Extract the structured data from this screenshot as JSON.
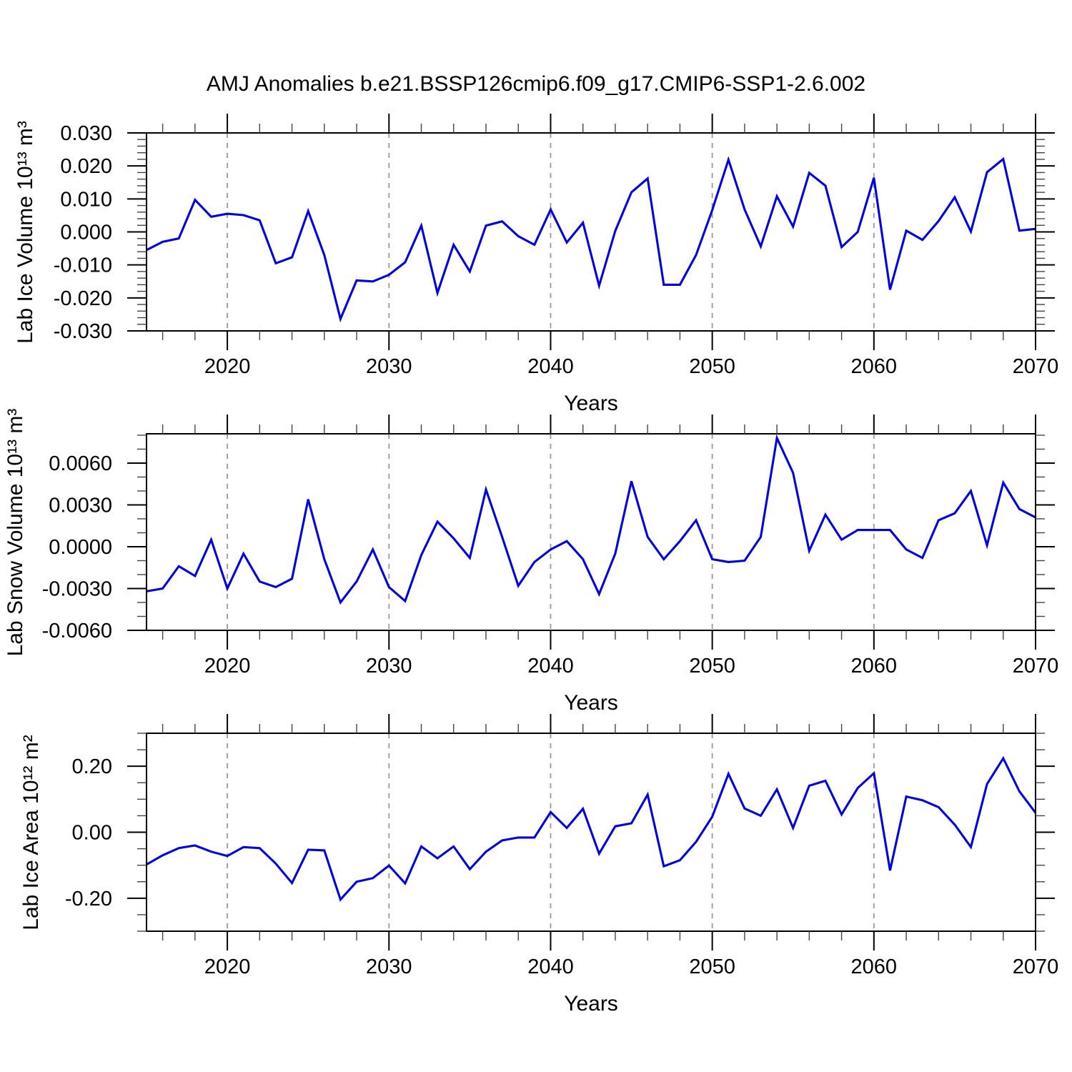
{
  "title": "AMJ Anomalies b.e21.BSSP126cmip6.f09_g17.CMIP6-SSP1-2.6.002",
  "colors": {
    "line": "#0000e0",
    "grid": "#999999",
    "axis": "#000000",
    "minor_tick": "#444444",
    "background": "#ffffff"
  },
  "chart_data": [
    {
      "type": "line",
      "title": "AMJ Anomalies b.e21.BSSP126cmip6.f09_g17.CMIP6-SSP1-2.6.002",
      "ylabel": "Lab Ice Volume 10¹³ m³",
      "xlabel": "Years",
      "legend_position": "none",
      "grid": "vertical-dashed",
      "grid_years": [
        2020,
        2030,
        2040,
        2050,
        2060
      ],
      "xlim": [
        2015,
        2070
      ],
      "ylim": [
        -0.03,
        0.03
      ],
      "xticks": {
        "values": [
          2020,
          2030,
          2040,
          2050,
          2060,
          2070
        ],
        "labels": [
          "2020",
          "2030",
          "2040",
          "2050",
          "2060",
          "2070"
        ]
      },
      "yticks": {
        "values": [
          0.03,
          0.02,
          0.01,
          0.0,
          -0.01,
          -0.02,
          -0.03
        ],
        "labels": [
          "0.030",
          "0.020",
          "0.010",
          "0.000",
          "-0.010",
          "-0.020",
          "-0.030"
        ]
      },
      "xminor_step": 2,
      "yminor_step": 0.002,
      "x": [
        2015,
        2016,
        2017,
        2018,
        2019,
        2020,
        2021,
        2022,
        2023,
        2024,
        2025,
        2026,
        2027,
        2028,
        2029,
        2030,
        2031,
        2032,
        2033,
        2034,
        2035,
        2036,
        2037,
        2038,
        2039,
        2040,
        2041,
        2042,
        2043,
        2044,
        2045,
        2046,
        2047,
        2048,
        2049,
        2050,
        2051,
        2052,
        2053,
        2054,
        2055,
        2056,
        2057,
        2058,
        2059,
        2060,
        2061,
        2062,
        2063,
        2064,
        2065,
        2066,
        2067,
        2068,
        2069,
        2070
      ],
      "values": [
        -0.0055,
        -0.003,
        -0.002,
        0.0097,
        0.0046,
        0.0055,
        0.0051,
        0.0035,
        -0.0095,
        -0.0077,
        0.0063,
        -0.007,
        -0.0264,
        -0.0147,
        -0.015,
        -0.013,
        -0.0092,
        0.0019,
        -0.0185,
        -0.0039,
        -0.012,
        0.0019,
        0.0032,
        -0.0013,
        -0.0039,
        0.0068,
        -0.0032,
        0.0028,
        -0.0163,
        0.0003,
        0.012,
        0.0162,
        -0.016,
        -0.016,
        -0.007,
        0.0066,
        0.0219,
        0.0068,
        -0.0044,
        0.0108,
        0.0016,
        0.0179,
        0.014,
        -0.0046,
        0.0,
        0.0164,
        -0.0175,
        0.0004,
        -0.0024,
        0.0033,
        0.0105,
        0.0001,
        0.0181,
        0.0221,
        0.0004,
        0.0009
      ]
    },
    {
      "type": "line",
      "title": "",
      "ylabel": "Lab Snow Volume 10¹³ m³",
      "xlabel": "Years",
      "legend_position": "none",
      "grid": "vertical-dashed",
      "grid_years": [
        2020,
        2030,
        2040,
        2050,
        2060
      ],
      "xlim": [
        2015,
        2070
      ],
      "ylim": [
        -0.006,
        0.0081
      ],
      "xticks": {
        "values": [
          2020,
          2030,
          2040,
          2050,
          2060,
          2070
        ],
        "labels": [
          "2020",
          "2030",
          "2040",
          "2050",
          "2060",
          "2070"
        ]
      },
      "yticks": {
        "values": [
          0.006,
          0.003,
          0.0,
          -0.003,
          -0.006
        ],
        "labels": [
          "0.0060",
          "0.0030",
          "0.0000",
          "-0.0030",
          "-0.0060"
        ]
      },
      "xminor_step": 2,
      "yminor_step": 0.001,
      "x": [
        2015,
        2016,
        2017,
        2018,
        2019,
        2020,
        2021,
        2022,
        2023,
        2024,
        2025,
        2026,
        2027,
        2028,
        2029,
        2030,
        2031,
        2032,
        2033,
        2034,
        2035,
        2036,
        2037,
        2038,
        2039,
        2040,
        2041,
        2042,
        2043,
        2044,
        2045,
        2046,
        2047,
        2048,
        2049,
        2050,
        2051,
        2052,
        2053,
        2054,
        2055,
        2056,
        2057,
        2058,
        2059,
        2060,
        2061,
        2062,
        2063,
        2064,
        2065,
        2066,
        2067,
        2068,
        2069,
        2070
      ],
      "values": [
        -0.0032,
        -0.003,
        -0.0014,
        -0.0021,
        0.0005,
        -0.003,
        -0.0005,
        -0.0025,
        -0.0029,
        -0.0023,
        0.0034,
        -0.0009,
        -0.004,
        -0.0025,
        -0.0002,
        -0.0029,
        -0.0039,
        -0.0006,
        0.0018,
        0.0006,
        -0.0008,
        0.0041,
        0.0007,
        -0.0028,
        -0.0011,
        -0.0002,
        0.0004,
        -0.0009,
        -0.0034,
        -0.0005,
        0.0047,
        0.0007,
        -0.0009,
        0.0004,
        0.0019,
        -0.0009,
        -0.0011,
        -0.001,
        0.0007,
        0.0078,
        0.0053,
        -0.0003,
        0.0023,
        0.0005,
        0.0012,
        0.0012,
        0.0012,
        -0.0002,
        -0.0008,
        0.0019,
        0.0024,
        0.004,
        0.0001,
        0.0046,
        0.0027,
        0.0021
      ]
    },
    {
      "type": "line",
      "title": "",
      "ylabel": "Lab Ice Area 10¹² m²",
      "xlabel": "Years",
      "legend_position": "none",
      "grid": "vertical-dashed",
      "grid_years": [
        2020,
        2030,
        2040,
        2050,
        2060
      ],
      "xlim": [
        2015,
        2070
      ],
      "ylim": [
        -0.3,
        0.3
      ],
      "xticks": {
        "values": [
          2020,
          2030,
          2040,
          2050,
          2060,
          2070
        ],
        "labels": [
          "2020",
          "2030",
          "2040",
          "2050",
          "2060",
          "2070"
        ]
      },
      "yticks": {
        "values": [
          0.2,
          0.0,
          -0.2
        ],
        "labels": [
          "0.20",
          "0.00",
          "-0.20"
        ]
      },
      "xminor_step": 2,
      "yminor_step": 0.05,
      "x": [
        2015,
        2016,
        2017,
        2018,
        2019,
        2020,
        2021,
        2022,
        2023,
        2024,
        2025,
        2026,
        2027,
        2028,
        2029,
        2030,
        2031,
        2032,
        2033,
        2034,
        2035,
        2036,
        2037,
        2038,
        2039,
        2040,
        2041,
        2042,
        2043,
        2044,
        2045,
        2046,
        2047,
        2048,
        2049,
        2050,
        2051,
        2052,
        2053,
        2054,
        2055,
        2056,
        2057,
        2058,
        2059,
        2060,
        2061,
        2062,
        2063,
        2064,
        2065,
        2066,
        2067,
        2068,
        2069,
        2070
      ],
      "values": [
        -0.098,
        -0.07,
        -0.048,
        -0.04,
        -0.059,
        -0.072,
        -0.045,
        -0.048,
        -0.095,
        -0.154,
        -0.053,
        -0.055,
        -0.204,
        -0.15,
        -0.139,
        -0.101,
        -0.155,
        -0.043,
        -0.079,
        -0.043,
        -0.112,
        -0.059,
        -0.025,
        -0.016,
        -0.016,
        0.061,
        0.013,
        0.071,
        -0.065,
        0.018,
        0.027,
        0.114,
        -0.103,
        -0.085,
        -0.029,
        0.047,
        0.177,
        0.072,
        0.05,
        0.13,
        0.013,
        0.141,
        0.156,
        0.054,
        0.134,
        0.179,
        -0.116,
        0.108,
        0.097,
        0.076,
        0.023,
        -0.045,
        0.146,
        0.224,
        0.124,
        0.059
      ]
    }
  ]
}
